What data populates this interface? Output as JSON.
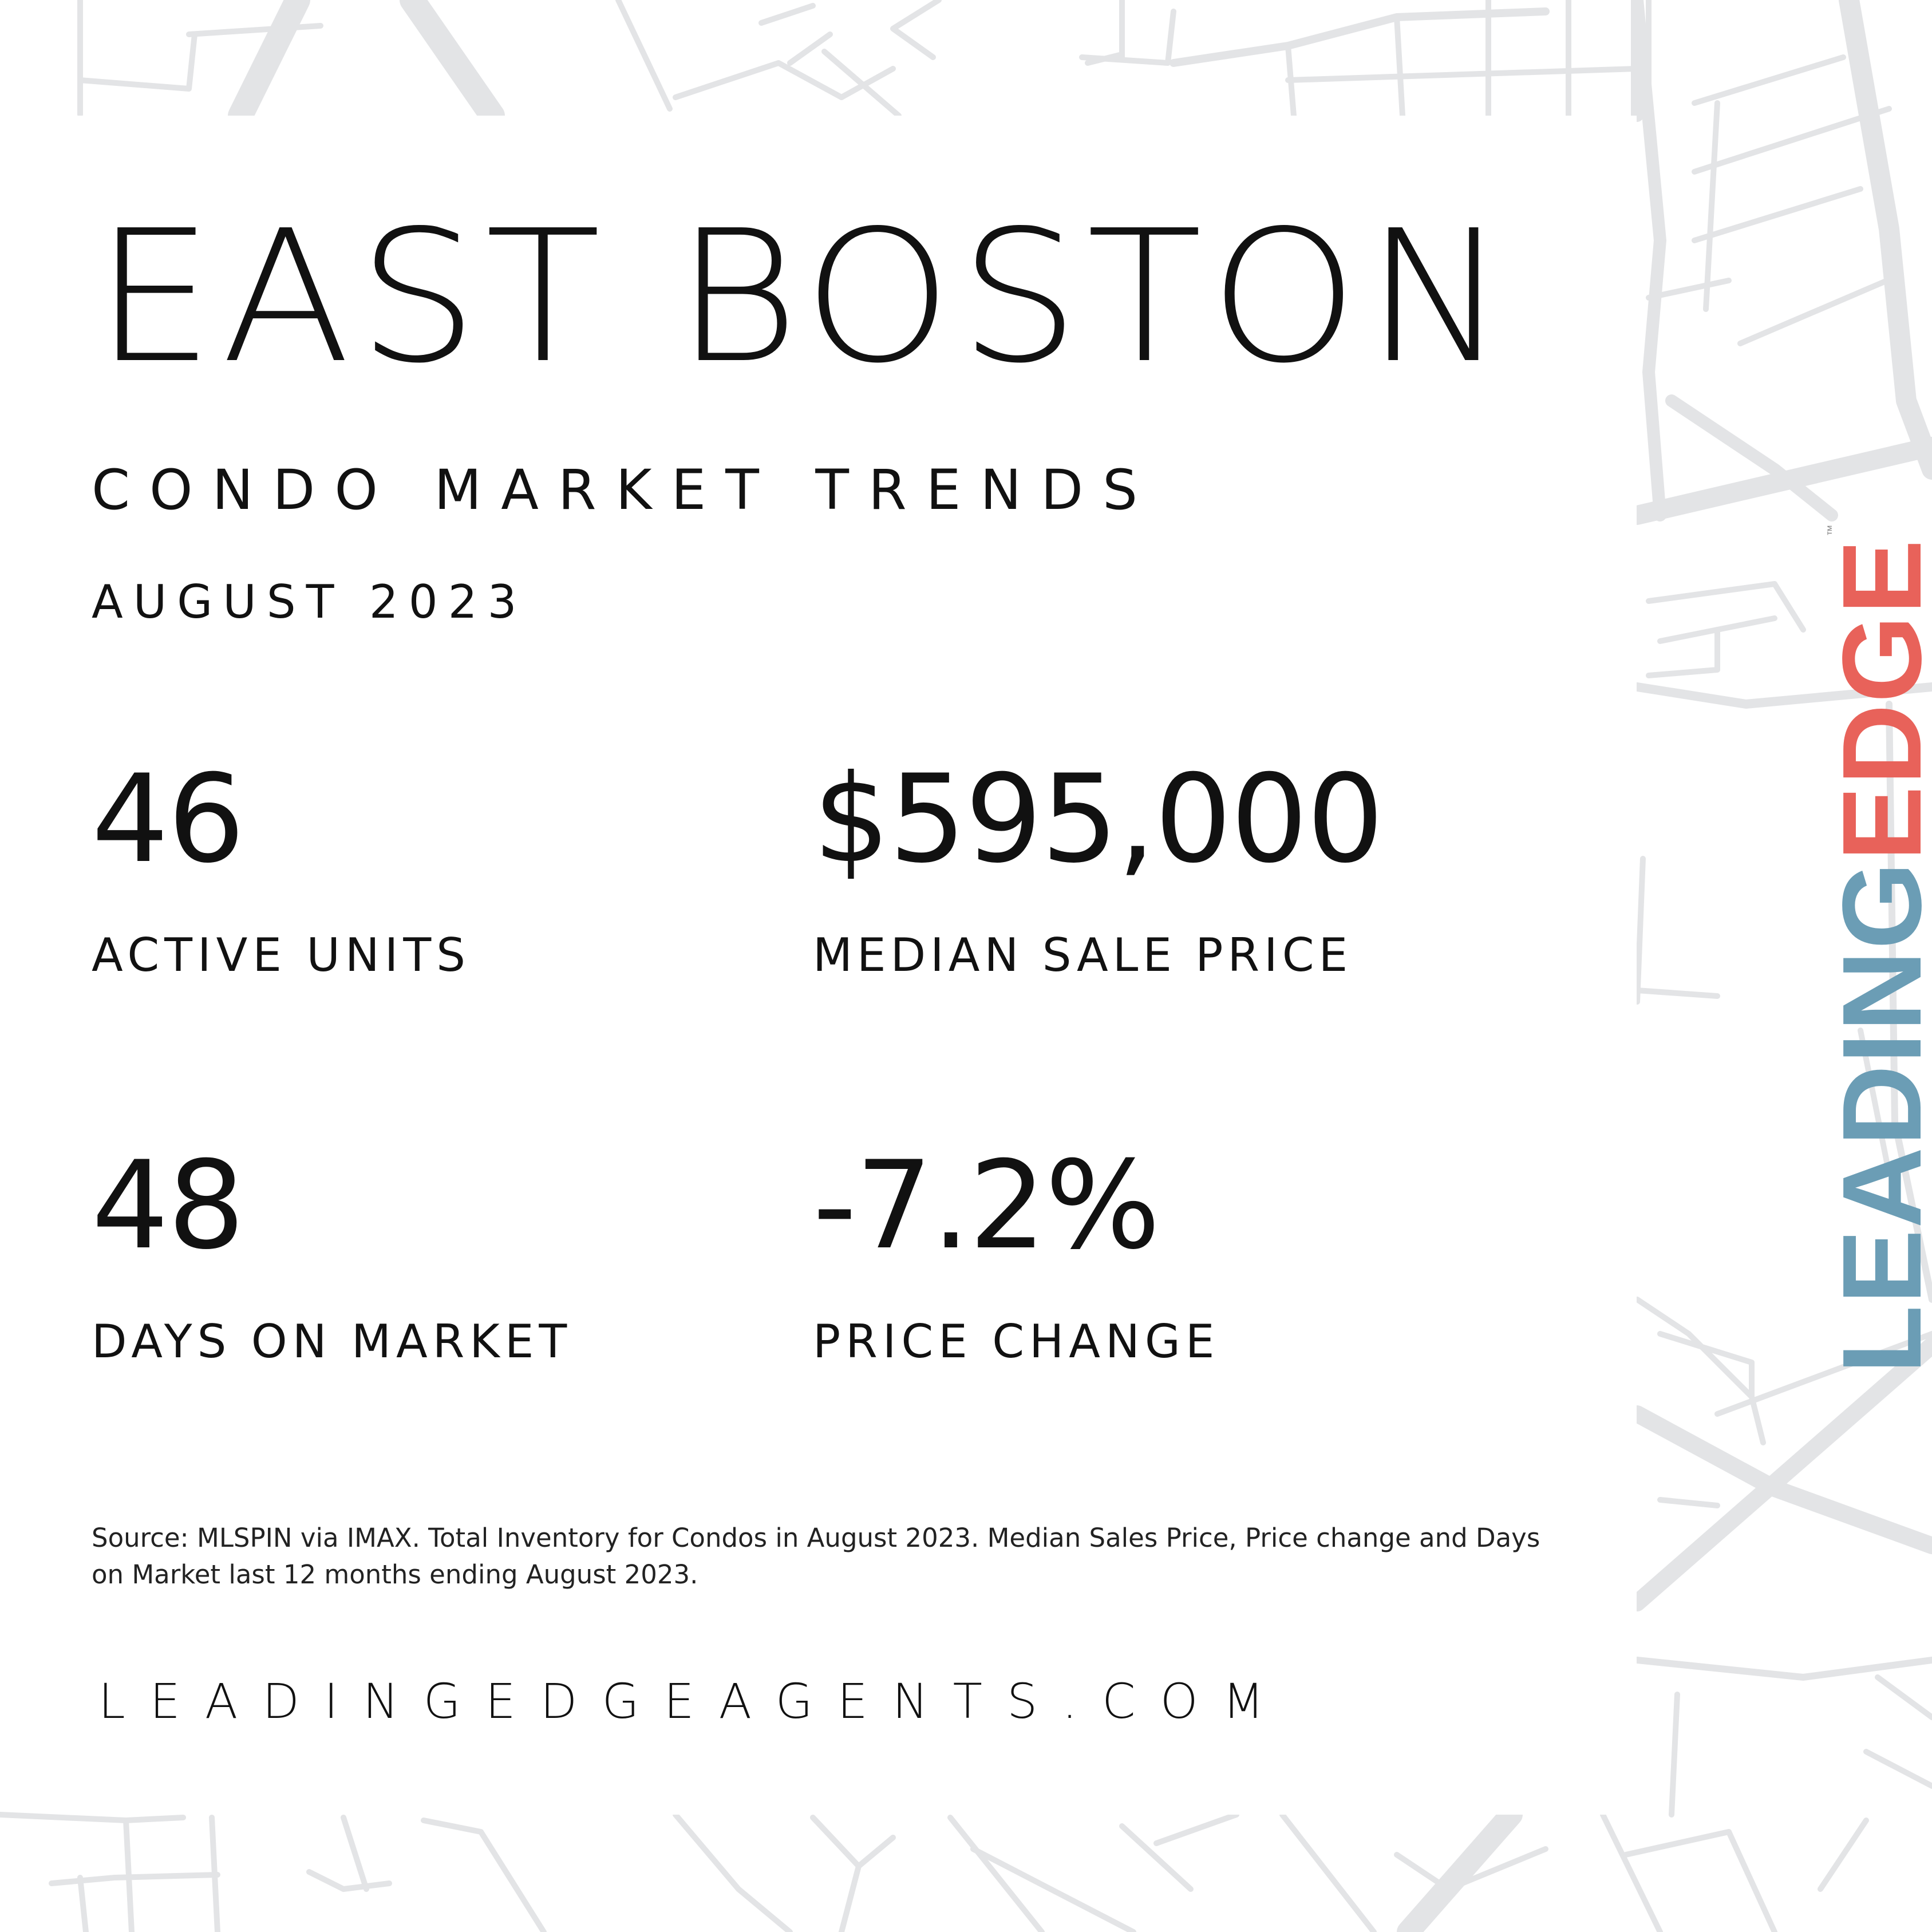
{
  "title": "EAST BOSTON",
  "subtitle": "CONDO MARKET TRENDS",
  "period": "AUGUST 2023",
  "stats": [
    {
      "value": "46",
      "label": "ACTIVE UNITS"
    },
    {
      "value": "$595,000",
      "label": "MEDIAN SALE PRICE"
    },
    {
      "value": "48",
      "label": "DAYS ON MARKET"
    },
    {
      "value": "-7.2%",
      "label": "PRICE CHANGE"
    }
  ],
  "source": "Source: MLSPIN via IMAX. Total Inventory for Condos in August 2023. Median Sales Price, Price change and Days on Market last 12 months ending August 2023.",
  "website": "LEADINGEDGEAGENTS.COM",
  "logo": {
    "part1": "LEADING",
    "part2": "EDGE",
    "tm": "™"
  },
  "colors": {
    "logo_blue": "#6b9db5",
    "logo_red": "#e8625a",
    "map_lines": "#e3e4e6",
    "text": "#111111"
  }
}
